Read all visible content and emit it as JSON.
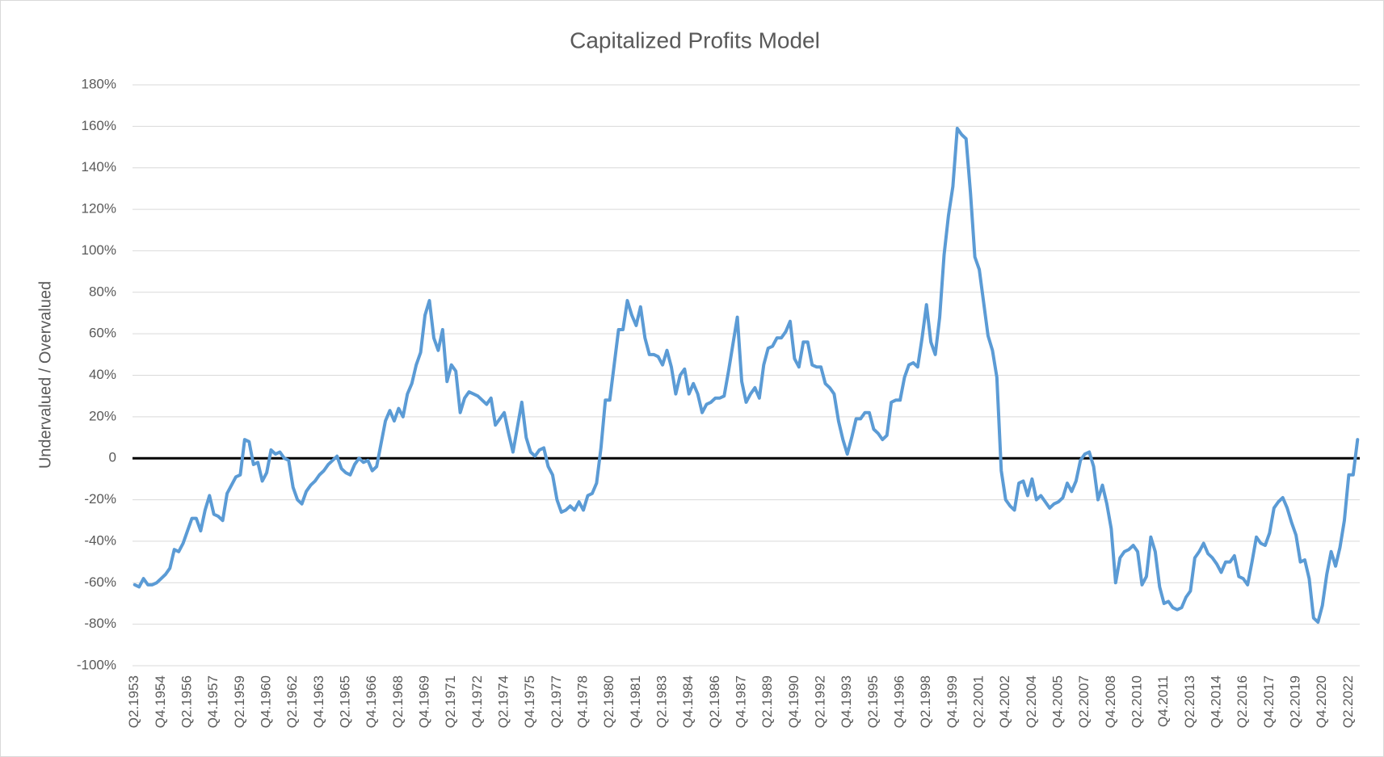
{
  "chart_data": {
    "type": "line",
    "title": "Capitalized Profits Model",
    "y_label": "Undervalued / Overvalued",
    "categories": [
      "Q2.1953",
      null,
      null,
      null,
      null,
      null,
      "Q4.1954",
      null,
      null,
      null,
      null,
      null,
      "Q2.1956",
      null,
      null,
      null,
      null,
      null,
      "Q4.1957",
      null,
      null,
      null,
      null,
      null,
      "Q2.1959",
      null,
      null,
      null,
      null,
      null,
      "Q4.1960",
      null,
      null,
      null,
      null,
      null,
      "Q2.1962",
      null,
      null,
      null,
      null,
      null,
      "Q4.1963",
      null,
      null,
      null,
      null,
      null,
      "Q2.1965",
      null,
      null,
      null,
      null,
      null,
      "Q4.1966",
      null,
      null,
      null,
      null,
      null,
      "Q2.1968",
      null,
      null,
      null,
      null,
      null,
      "Q4.1969",
      null,
      null,
      null,
      null,
      null,
      "Q2.1971",
      null,
      null,
      null,
      null,
      null,
      "Q4.1972",
      null,
      null,
      null,
      null,
      null,
      "Q2.1974",
      null,
      null,
      null,
      null,
      null,
      "Q4.1975",
      null,
      null,
      null,
      null,
      null,
      "Q2.1977",
      null,
      null,
      null,
      null,
      null,
      "Q4.1978",
      null,
      null,
      null,
      null,
      null,
      "Q2.1980",
      null,
      null,
      null,
      null,
      null,
      "Q4.1981",
      null,
      null,
      null,
      null,
      null,
      "Q2.1983",
      null,
      null,
      null,
      null,
      null,
      "Q4.1984",
      null,
      null,
      null,
      null,
      null,
      "Q2.1986",
      null,
      null,
      null,
      null,
      null,
      "Q4.1987",
      null,
      null,
      null,
      null,
      null,
      "Q2.1989",
      null,
      null,
      null,
      null,
      null,
      "Q4.1990",
      null,
      null,
      null,
      null,
      null,
      "Q2.1992",
      null,
      null,
      null,
      null,
      null,
      "Q4.1993",
      null,
      null,
      null,
      null,
      null,
      "Q2.1995",
      null,
      null,
      null,
      null,
      null,
      "Q4.1996",
      null,
      null,
      null,
      null,
      null,
      "Q2.1998",
      null,
      null,
      null,
      null,
      null,
      "Q4.1999",
      null,
      null,
      null,
      null,
      null,
      "Q2.2001",
      null,
      null,
      null,
      null,
      null,
      "Q4.2002",
      null,
      null,
      null,
      null,
      null,
      "Q2.2004",
      null,
      null,
      null,
      null,
      null,
      "Q4.2005",
      null,
      null,
      null,
      null,
      null,
      "Q2.2007",
      null,
      null,
      null,
      null,
      null,
      "Q4.2008",
      null,
      null,
      null,
      null,
      null,
      "Q2.2010",
      null,
      null,
      null,
      null,
      null,
      "Q4.2011",
      null,
      null,
      null,
      null,
      null,
      "Q2.2013",
      null,
      null,
      null,
      null,
      null,
      "Q4.2014",
      null,
      null,
      null,
      null,
      null,
      "Q2.2016",
      null,
      null,
      null,
      null,
      null,
      "Q4.2017",
      null,
      null,
      null,
      null,
      null,
      "Q2.2019",
      null,
      null,
      null,
      null,
      null,
      "Q4.2020",
      null,
      null,
      null,
      null,
      null,
      "Q2.2022",
      null,
      null
    ],
    "series": [
      {
        "name": "Capitalized Profits Model",
        "color": "#5b9bd5",
        "values": [
          -61,
          -62,
          -58,
          -61,
          -61,
          -60,
          -58,
          -56,
          -53,
          -44,
          -45,
          -41,
          -35,
          -29,
          -29,
          -35,
          -25,
          -18,
          -27,
          -28,
          -30,
          -17,
          -13,
          -9,
          -8,
          9,
          8,
          -3,
          -2,
          -11,
          -7,
          4,
          2,
          3,
          0,
          -1,
          -14,
          -20,
          -22,
          -16,
          -13,
          -11,
          -8,
          -6,
          -3,
          -1,
          1,
          -5,
          -7,
          -8,
          -3,
          0,
          -2,
          -1,
          -6,
          -4,
          7,
          18,
          23,
          18,
          24,
          20,
          31,
          36,
          45,
          51,
          69,
          76,
          58,
          52,
          62,
          37,
          45,
          42,
          22,
          29,
          32,
          31,
          30,
          28,
          26,
          29,
          16,
          19,
          22,
          12,
          3,
          15,
          27,
          10,
          3,
          1,
          4,
          5,
          -4,
          -8,
          -20,
          -26,
          -25,
          -23,
          -25,
          -21,
          -25,
          -18,
          -17,
          -12,
          5,
          28,
          28,
          45,
          62,
          62,
          76,
          69,
          64,
          73,
          58,
          50,
          50,
          49,
          45,
          52,
          44,
          31,
          40,
          43,
          31,
          36,
          31,
          22,
          26,
          27,
          29,
          29,
          30,
          42,
          55,
          68,
          37,
          27,
          31,
          34,
          29,
          45,
          53,
          54,
          58,
          58,
          61,
          66,
          48,
          44,
          56,
          56,
          45,
          44,
          44,
          36,
          34,
          31,
          18,
          9,
          2,
          10,
          19,
          19,
          22,
          22,
          14,
          12,
          9,
          11,
          27,
          28,
          28,
          39,
          45,
          46,
          44,
          58,
          74,
          56,
          50,
          68,
          98,
          117,
          131,
          159,
          156,
          154,
          128,
          97,
          91,
          75,
          59,
          52,
          39,
          -6,
          -20,
          -23,
          -25,
          -12,
          -11,
          -18,
          -10,
          -20,
          -18,
          -21,
          -24,
          -22,
          -21,
          -19,
          -12,
          -16,
          -11,
          -1,
          2,
          3,
          -4,
          -20,
          -13,
          -22,
          -34,
          -60,
          -48,
          -45,
          -44,
          -42,
          -45,
          -61,
          -57,
          -38,
          -45,
          -62,
          -70,
          -69,
          -72,
          -73,
          -72,
          -67,
          -64,
          -48,
          -45,
          -41,
          -46,
          -48,
          -51,
          -55,
          -50,
          -50,
          -47,
          -57,
          -58,
          -61,
          -50,
          -38,
          -41,
          -42,
          -36,
          -24,
          -21,
          -19,
          -24,
          -31,
          -37,
          -50,
          -49,
          -58,
          -77,
          -79,
          -71,
          -56,
          -45,
          -52,
          -43,
          -30,
          -8,
          -8,
          9
        ]
      }
    ],
    "ylim": [
      -100,
      180
    ],
    "yticks": [
      {
        "value": -100,
        "label": "-100%"
      },
      {
        "value": -80,
        "label": "-80%"
      },
      {
        "value": -60,
        "label": "-60%"
      },
      {
        "value": -40,
        "label": "-40%"
      },
      {
        "value": -20,
        "label": "-20%"
      },
      0,
      {
        "value": 20,
        "label": "20%"
      },
      {
        "value": 40,
        "label": "40%"
      },
      {
        "value": 60,
        "label": "60%"
      },
      {
        "value": 80,
        "label": "80%"
      },
      {
        "value": 100,
        "label": "100%"
      },
      {
        "value": 120,
        "label": "120%"
      },
      {
        "value": 140,
        "label": "140%"
      },
      {
        "value": 160,
        "label": "160%"
      },
      {
        "value": 180,
        "label": "180%"
      }
    ],
    "grid": true
  }
}
